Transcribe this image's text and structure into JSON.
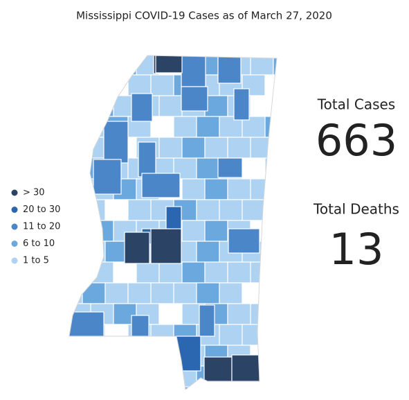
{
  "title": "Mississippi COVID-19 Cases as of March 27, 2020",
  "legend": [
    {
      "label": "> 30",
      "color": "#2b4466"
    },
    {
      "label": "20 to 30",
      "color": "#2b66b0"
    },
    {
      "label": "11 to 20",
      "color": "#4a86c8"
    },
    {
      "label": "6 to 10",
      "color": "#6ba8de"
    },
    {
      "label": "1 to 5",
      "color": "#aed3f2"
    }
  ],
  "total_cases": {
    "label": "Total Cases",
    "value": 663,
    "color": "#2c4a7c"
  },
  "total_deaths": {
    "label": "Total Deaths",
    "value": 13,
    "color": "#e8303a"
  }
}
